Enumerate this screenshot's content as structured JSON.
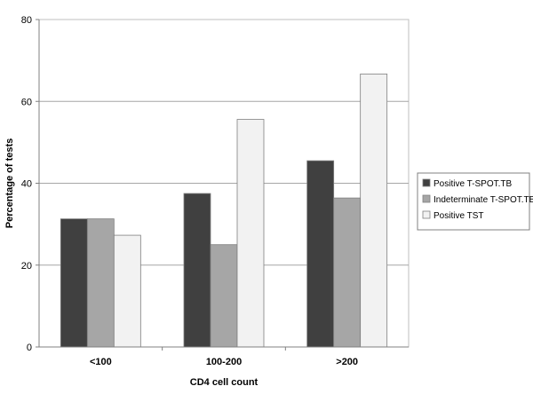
{
  "chart_data": {
    "type": "bar",
    "title": "",
    "xlabel": "CD4 cell count",
    "ylabel": "Percentage of tests",
    "ylim": [
      0,
      80
    ],
    "yticks": [
      0,
      20,
      40,
      60,
      80
    ],
    "grid": true,
    "legend_position": "right",
    "categories": [
      "<100",
      "100-200",
      ">200"
    ],
    "series": [
      {
        "name": "Positive T-SPOT.TB",
        "color": "#404040",
        "values": [
          31.3,
          37.5,
          45.5
        ]
      },
      {
        "name": "Indeterminate T-SPOT.TB",
        "color": "#a6a6a6",
        "values": [
          31.3,
          25.0,
          36.4
        ]
      },
      {
        "name": "Positive TST",
        "color": "#f2f2f2",
        "values": [
          27.3,
          55.6,
          66.7
        ]
      }
    ]
  }
}
